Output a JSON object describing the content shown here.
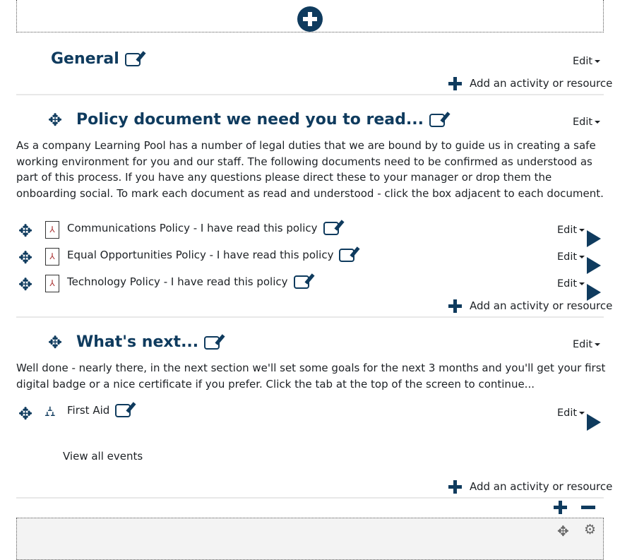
{
  "sections": [
    {
      "title": "General",
      "edit": "Edit"
    },
    {
      "title": "Policy document we need you to read...",
      "edit": "Edit",
      "summary": "As a company Learning Pool has a number of legal duties that we are bound by to guide us in creating a safe working environment for you and our staff. The following documents need to be confirmed as understood as part of this process. If you have any questions please direct these to your manager or drop them the onboarding social. To mark each document as read and understood - click the box adjacent to each document.",
      "activities": [
        {
          "name": "Communications Policy - I have read this policy",
          "icon": "pdf-icon",
          "edit": "Edit"
        },
        {
          "name": "Equal Opportunities Policy - I have read this policy",
          "icon": "pdf-icon",
          "edit": "Edit"
        },
        {
          "name": "Technology Policy - I have read this policy",
          "icon": "pdf-icon",
          "edit": "Edit"
        }
      ]
    },
    {
      "title": "What's next...",
      "edit": "Edit",
      "summary": "Well done - nearly there, in the next section we'll set some goals for the next 3 months and you'll get your first digital badge or a nice certificate if you prefer. Click the tab at the top of the screen to continue...",
      "activities": [
        {
          "name": "First Aid",
          "icon": "people-hierarchy-icon",
          "edit": "Edit"
        }
      ],
      "view_all": "View all events"
    }
  ],
  "add_activity": "Add an activity or resource",
  "colors": {
    "accent": "#0f3b5e"
  }
}
